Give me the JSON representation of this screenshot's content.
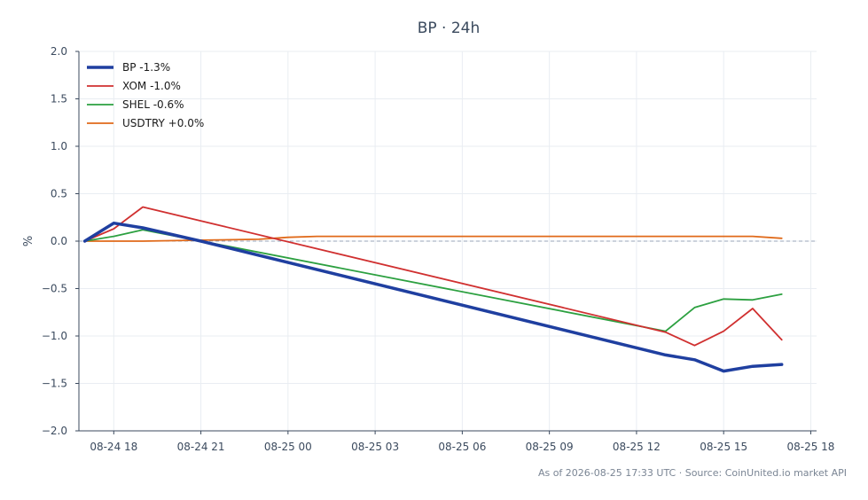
{
  "chart_data": {
    "type": "line",
    "title": "BP · 24h",
    "ylabel": "%",
    "ylim": [
      -2.0,
      2.0
    ],
    "yticks": [
      2.0,
      1.5,
      1.0,
      0.5,
      0.0,
      -0.5,
      -1.0,
      -1.5,
      -2.0
    ],
    "ytick_labels": [
      "2.0",
      "1.5",
      "1.0",
      "0.5",
      "0.0",
      "−0.5",
      "−1.0",
      "−1.5",
      "−2.0"
    ],
    "xlim": [
      16.8,
      42.2
    ],
    "xticks": [
      18,
      21,
      24,
      27,
      30,
      33,
      36,
      39,
      42
    ],
    "xtick_labels": [
      "08-24 18",
      "08-24 21",
      "08-25 00",
      "08-25 03",
      "08-25 06",
      "08-25 09",
      "08-25 12",
      "08-25 15",
      "08-25 18"
    ],
    "grid": true,
    "zero_line": true,
    "legend_position": "top-left",
    "series": [
      {
        "name": "BP -1.3%",
        "color": "#1f3fa0",
        "width": 3.5,
        "x": [
          17.0,
          18.0,
          19.0,
          21.0,
          37.0,
          38.0,
          39.0,
          40.0,
          41.0
        ],
        "y": [
          0.0,
          0.19,
          0.14,
          0.0,
          -1.2,
          -1.25,
          -1.37,
          -1.32,
          -1.3
        ]
      },
      {
        "name": "XOM -1.0%",
        "color": "#d03030",
        "width": 1.8,
        "x": [
          17.0,
          18.0,
          19.0,
          37.0,
          38.0,
          39.0,
          40.0,
          41.0
        ],
        "y": [
          0.0,
          0.13,
          0.36,
          -0.96,
          -1.1,
          -0.95,
          -0.71,
          -1.04
        ]
      },
      {
        "name": "SHEL -0.6%",
        "color": "#2ca040",
        "width": 1.8,
        "x": [
          17.0,
          18.0,
          19.0,
          37.0,
          38.0,
          39.0,
          40.0,
          41.0
        ],
        "y": [
          0.0,
          0.05,
          0.12,
          -0.95,
          -0.7,
          -0.61,
          -0.62,
          -0.56
        ]
      },
      {
        "name": "USDTRY +0.0%",
        "color": "#e06a1a",
        "width": 1.8,
        "x": [
          17.0,
          18.0,
          19.0,
          21.0,
          23.0,
          24.0,
          25.0,
          27.0,
          29.0,
          30.0,
          33.0,
          36.0,
          39.0,
          40.0,
          41.0
        ],
        "y": [
          0.0,
          0.0,
          0.0,
          0.01,
          0.02,
          0.04,
          0.05,
          0.05,
          0.05,
          0.05,
          0.05,
          0.05,
          0.05,
          0.05,
          0.03
        ]
      }
    ],
    "footer": "As of 2026-08-25 17:33 UTC · Source: CoinUnited.io market API"
  }
}
